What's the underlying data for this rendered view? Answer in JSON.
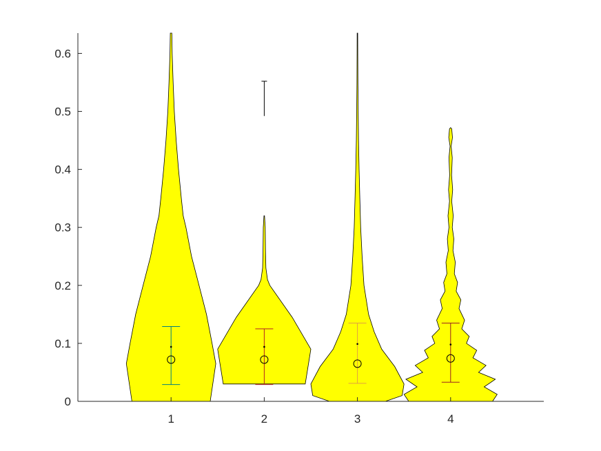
{
  "chart_data": {
    "type": "violin",
    "title": "",
    "xlabel": "",
    "ylabel": "",
    "ylim": [
      0,
      0.635
    ],
    "xlim": [
      0,
      5
    ],
    "grid": false,
    "fill_color": "#ffff00",
    "outline_color": "#000000",
    "x_ticks": [
      "1",
      "2",
      "3",
      "4"
    ],
    "y_ticks": [
      "0",
      "0.1",
      "0.2",
      "0.3",
      "0.4",
      "0.5",
      "0.6"
    ],
    "y_tick_values": [
      0,
      0.1,
      0.2,
      0.3,
      0.4,
      0.5,
      0.6
    ],
    "violins": [
      {
        "x": 1,
        "mean": 0.094,
        "median": 0.072,
        "whisker_low": 0.029,
        "whisker_high": 0.129,
        "errorbar_color": "#008080",
        "profile": [
          [
            0.0,
            0.42
          ],
          [
            0.065,
            0.48
          ],
          [
            0.1,
            0.44
          ],
          [
            0.15,
            0.38
          ],
          [
            0.2,
            0.3
          ],
          [
            0.25,
            0.22
          ],
          [
            0.3,
            0.16
          ],
          [
            0.32,
            0.13
          ],
          [
            0.35,
            0.11
          ],
          [
            0.4,
            0.08
          ],
          [
            0.45,
            0.055
          ],
          [
            0.5,
            0.035
          ],
          [
            0.55,
            0.022
          ],
          [
            0.6,
            0.012
          ],
          [
            0.635,
            0.008
          ]
        ]
      },
      {
        "x": 2,
        "mean": 0.094,
        "median": 0.072,
        "whisker_low": 0.029,
        "whisker_high": 0.125,
        "errorbar_color": "#b22222",
        "profile": [
          [
            0.03,
            0.44
          ],
          [
            0.09,
            0.5
          ],
          [
            0.145,
            0.3
          ],
          [
            0.2,
            0.06
          ],
          [
            0.21,
            0.035
          ],
          [
            0.23,
            0.018
          ],
          [
            0.26,
            0.013
          ],
          [
            0.3,
            0.01
          ],
          [
            0.32,
            0.003
          ]
        ],
        "outlier_segment": [
          0.492,
          0.552
        ]
      },
      {
        "x": 3,
        "mean": 0.099,
        "median": 0.065,
        "whisker_low": 0.031,
        "whisker_high": 0.135,
        "errorbar_color": "#e0a040",
        "profile": [
          [
            0.0,
            0.3
          ],
          [
            0.01,
            0.48
          ],
          [
            0.03,
            0.5
          ],
          [
            0.06,
            0.4
          ],
          [
            0.09,
            0.26
          ],
          [
            0.12,
            0.18
          ],
          [
            0.15,
            0.12
          ],
          [
            0.2,
            0.07
          ],
          [
            0.25,
            0.05
          ],
          [
            0.3,
            0.035
          ],
          [
            0.35,
            0.026
          ],
          [
            0.4,
            0.018
          ],
          [
            0.45,
            0.012
          ],
          [
            0.5,
            0.008
          ],
          [
            0.55,
            0.005
          ],
          [
            0.6,
            0.004
          ],
          [
            0.635,
            0.003
          ]
        ]
      },
      {
        "x": 4,
        "mean": 0.098,
        "median": 0.074,
        "whisker_low": 0.033,
        "whisker_high": 0.135,
        "errorbar_color": "#9a2020",
        "profile": [
          [
            0.0,
            0.45
          ],
          [
            0.012,
            0.5
          ],
          [
            0.025,
            0.36
          ],
          [
            0.038,
            0.48
          ],
          [
            0.05,
            0.3
          ],
          [
            0.062,
            0.38
          ],
          [
            0.075,
            0.24
          ],
          [
            0.088,
            0.28
          ],
          [
            0.1,
            0.17
          ],
          [
            0.112,
            0.2
          ],
          [
            0.125,
            0.12
          ],
          [
            0.14,
            0.15
          ],
          [
            0.16,
            0.09
          ],
          [
            0.175,
            0.11
          ],
          [
            0.19,
            0.06
          ],
          [
            0.205,
            0.075
          ],
          [
            0.22,
            0.04
          ],
          [
            0.24,
            0.05
          ],
          [
            0.26,
            0.025
          ],
          [
            0.28,
            0.035
          ],
          [
            0.3,
            0.018
          ],
          [
            0.32,
            0.028
          ],
          [
            0.345,
            0.012
          ],
          [
            0.365,
            0.022
          ],
          [
            0.39,
            0.01
          ],
          [
            0.42,
            0.018
          ],
          [
            0.44,
            0.006
          ],
          [
            0.455,
            0.02
          ],
          [
            0.47,
            0.012
          ],
          [
            0.472,
            0.0
          ]
        ]
      }
    ]
  }
}
